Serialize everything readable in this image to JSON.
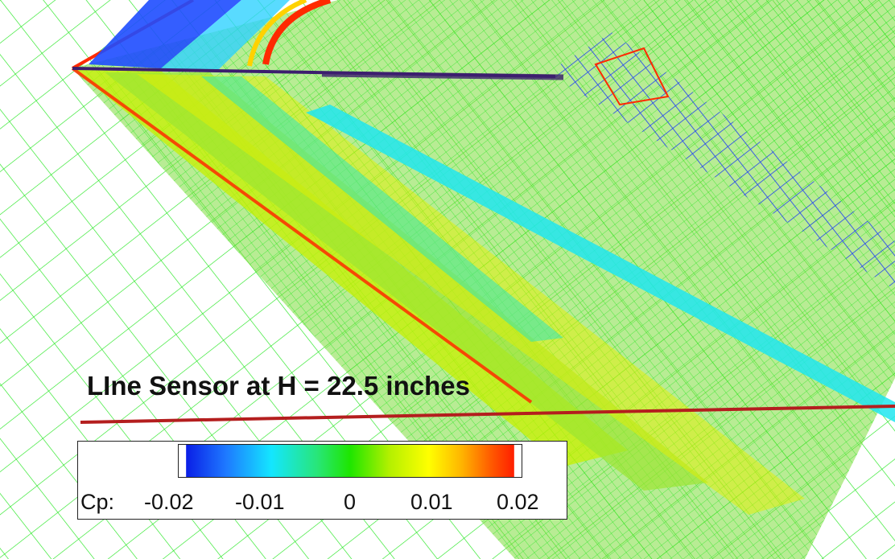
{
  "annotation": {
    "sensor_label": "LIne Sensor at H = 22.5 inches"
  },
  "legend": {
    "variable": "Cp:",
    "ticks": [
      "-0.02",
      "-0.01",
      "0",
      "0.01",
      "0.02"
    ],
    "colormap": [
      "#0a1ee6",
      "#1e78ff",
      "#14e6ff",
      "#28e678",
      "#1ee600",
      "#b4f000",
      "#ffff00",
      "#ffb400",
      "#ff5a00",
      "#ff1e00"
    ]
  },
  "colors": {
    "mesh": "#22e61e",
    "sensor_line": "#b41e1e",
    "body_line": "#3c1e6e"
  }
}
